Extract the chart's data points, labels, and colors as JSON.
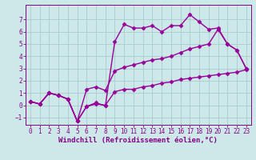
{
  "xlabel": "Windchill (Refroidissement éolien,°C)",
  "xlim": [
    -0.5,
    23.5
  ],
  "ylim": [
    -1.6,
    8.2
  ],
  "xticks": [
    0,
    1,
    2,
    3,
    4,
    5,
    6,
    7,
    8,
    9,
    10,
    11,
    12,
    13,
    14,
    15,
    16,
    17,
    18,
    19,
    20,
    21,
    22,
    23
  ],
  "yticks": [
    -1,
    0,
    1,
    2,
    3,
    4,
    5,
    6,
    7
  ],
  "bg_color": "#cce8e8",
  "grid_color": "#aacccc",
  "line_color": "#990099",
  "line1_x": [
    0,
    1,
    2,
    3,
    4,
    5,
    6,
    7,
    8,
    9,
    10,
    11,
    12,
    13,
    14,
    15,
    16,
    17,
    18,
    19,
    20,
    21,
    22,
    23
  ],
  "line1_y": [
    0.3,
    0.1,
    1.0,
    0.8,
    0.5,
    -1.3,
    -0.1,
    0.1,
    0.0,
    1.1,
    1.3,
    1.3,
    1.5,
    1.6,
    1.8,
    1.9,
    2.1,
    2.2,
    2.3,
    2.4,
    2.5,
    2.6,
    2.7,
    2.9
  ],
  "line2_x": [
    0,
    1,
    2,
    3,
    4,
    5,
    6,
    7,
    8,
    9,
    10,
    11,
    12,
    13,
    14,
    15,
    16,
    17,
    18,
    19,
    20,
    21,
    22,
    23
  ],
  "line2_y": [
    0.3,
    0.1,
    1.0,
    0.8,
    0.5,
    -1.3,
    -0.1,
    0.2,
    -0.05,
    5.2,
    6.6,
    6.3,
    6.3,
    6.5,
    6.0,
    6.5,
    6.5,
    7.4,
    6.8,
    6.2,
    6.3,
    5.0,
    4.5,
    3.0
  ],
  "line3_x": [
    0,
    1,
    2,
    3,
    4,
    5,
    6,
    7,
    8,
    9,
    10,
    11,
    12,
    13,
    14,
    15,
    16,
    17,
    18,
    19,
    20,
    21,
    22,
    23
  ],
  "line3_y": [
    0.3,
    0.1,
    1.0,
    0.8,
    0.5,
    -1.3,
    1.3,
    1.5,
    1.2,
    2.8,
    3.1,
    3.3,
    3.5,
    3.7,
    3.8,
    4.0,
    4.3,
    4.6,
    4.8,
    5.0,
    6.2,
    5.0,
    4.5,
    3.0
  ],
  "marker": "D",
  "markersize": 2.5,
  "linewidth": 1.0,
  "tick_fontsize": 5.5,
  "xlabel_fontsize": 6.5,
  "axis_color": "#880088",
  "spine_color": "#880088"
}
